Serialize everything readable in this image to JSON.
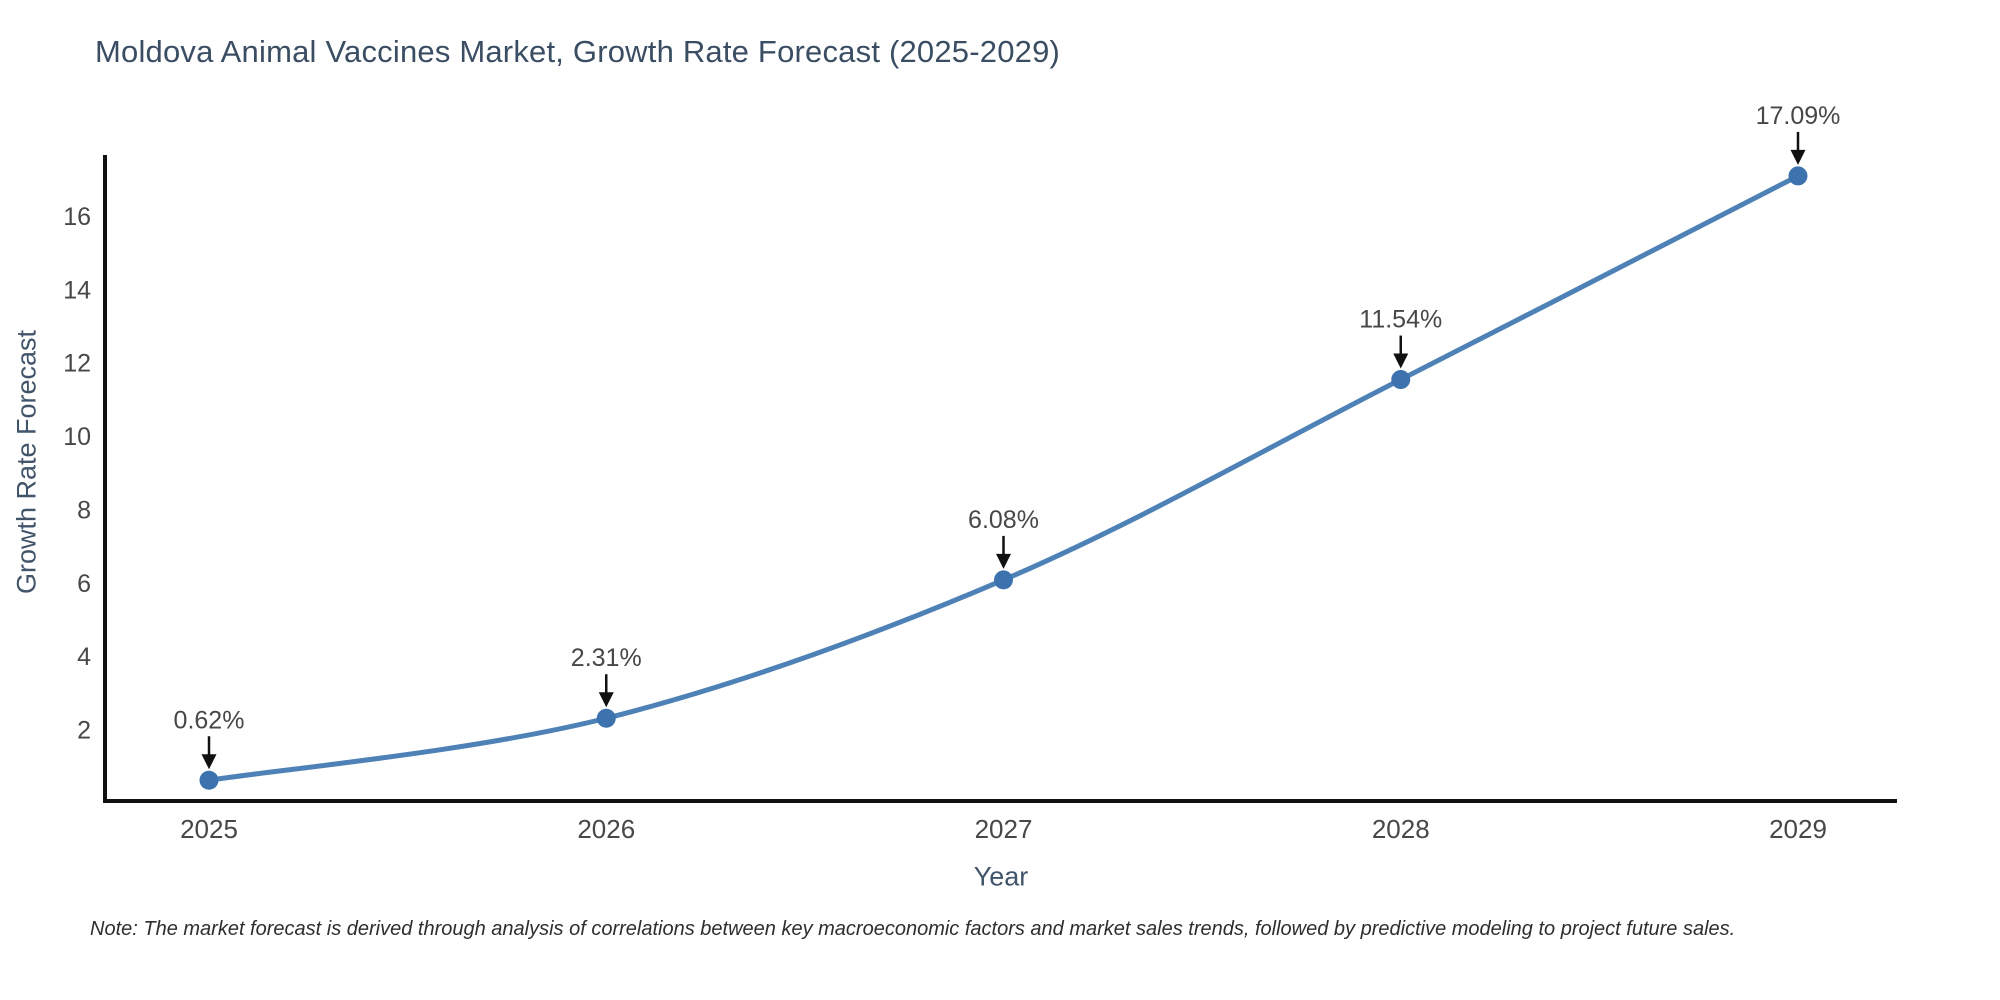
{
  "page": {
    "note": "Note: The market forecast is derived through analysis of correlations between key macroeconomic factors and market sales trends, followed by predictive modeling to project future sales."
  },
  "chart_data": {
    "type": "line",
    "title": "Moldova Animal Vaccines Market, Growth Rate Forecast (2025-2029)",
    "xlabel": "Year",
    "ylabel": "Growth Rate Forecast",
    "categories": [
      "2025",
      "2026",
      "2027",
      "2028",
      "2029"
    ],
    "series": [
      {
        "name": "Growth Rate Forecast",
        "values": [
          0.62,
          2.31,
          6.08,
          11.54,
          17.09
        ]
      }
    ],
    "point_labels": [
      "0.62%",
      "2.31%",
      "6.08%",
      "11.54%",
      "17.09%"
    ],
    "yticks": [
      2,
      4,
      6,
      8,
      10,
      12,
      14,
      16
    ],
    "ylim": [
      0,
      17.66
    ],
    "grid": false,
    "legend": "none",
    "smooth": true,
    "colors": {
      "line": "#4e81b6",
      "marker": "#3c73ae",
      "axis": "#111111",
      "tick_label": "#474747",
      "annotation_text": "#474747",
      "annotation_arrow": "#111111",
      "title_text": "#3b4d63"
    }
  }
}
